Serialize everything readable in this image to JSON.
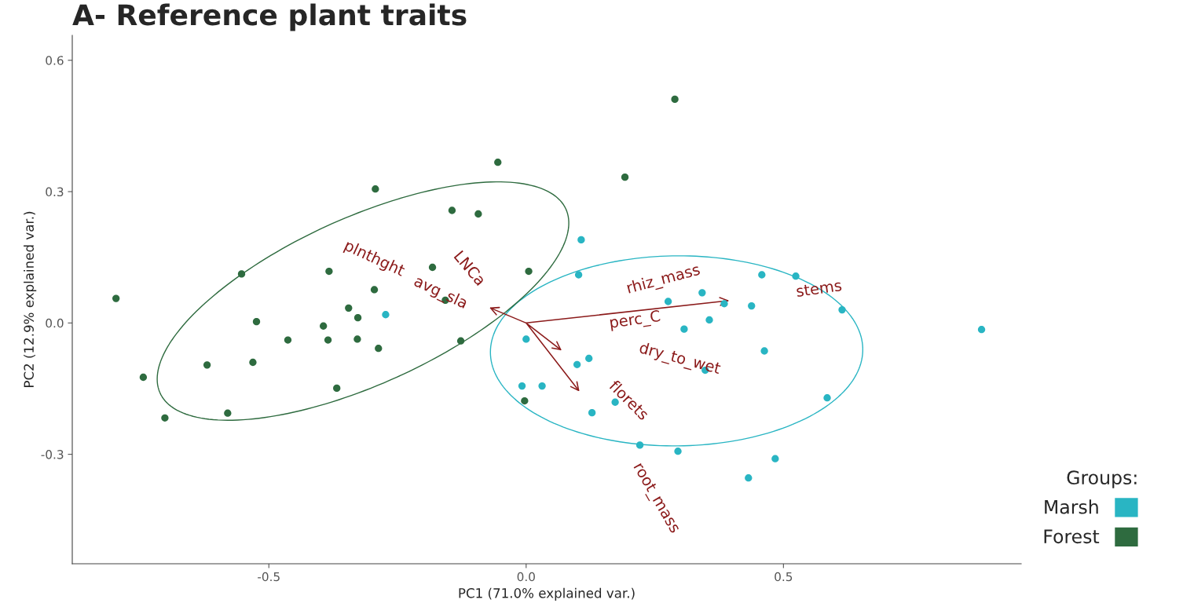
{
  "chart_data": {
    "type": "scatter",
    "title": "A- Reference plant traits",
    "xlabel": "PC1 (71.0% explained var.)",
    "ylabel": "PC2 (12.9% explained var.)",
    "legend_title": "Groups:",
    "legend": "bottom right",
    "grid": false,
    "marker": "circle",
    "xlim": [
      -0.882,
      0.962
    ],
    "ylim": [
      -0.55,
      0.657
    ],
    "xticks": [
      {
        "value": -0.5,
        "label": "-0.5"
      },
      {
        "value": 0.0,
        "label": "0.0"
      },
      {
        "value": 0.5,
        "label": "0.5"
      }
    ],
    "yticks": [
      {
        "value": -0.3,
        "label": "-0.3"
      },
      {
        "value": 0.0,
        "label": "0.0"
      },
      {
        "value": 0.3,
        "label": "0.3"
      },
      {
        "value": 0.6,
        "label": "0.6"
      }
    ],
    "series": [
      {
        "name": "Marsh",
        "color": "#29b5c3",
        "x": [
          -0.273,
          0.107,
          0.102,
          0.0,
          -0.008,
          0.031,
          0.099,
          0.122,
          0.128,
          0.173,
          0.221,
          0.295,
          0.342,
          0.276,
          0.385,
          0.438,
          0.356,
          0.307,
          0.458,
          0.524,
          0.614,
          0.463,
          0.348,
          0.585,
          0.885,
          0.484,
          0.432
        ],
        "values": [
          0.019,
          0.19,
          0.11,
          -0.037,
          -0.144,
          -0.144,
          -0.095,
          -0.081,
          -0.205,
          -0.181,
          -0.279,
          -0.293,
          0.069,
          0.049,
          0.044,
          0.039,
          0.007,
          -0.014,
          0.11,
          0.107,
          0.03,
          -0.064,
          -0.108,
          -0.171,
          -0.015,
          -0.31,
          -0.354
        ]
      },
      {
        "name": "Forest",
        "color": "#2e6b3f",
        "x": [
          -0.797,
          -0.744,
          -0.702,
          -0.62,
          -0.58,
          -0.553,
          -0.531,
          -0.524,
          -0.463,
          -0.394,
          -0.383,
          -0.385,
          -0.368,
          -0.345,
          -0.327,
          -0.328,
          -0.293,
          -0.295,
          -0.287,
          -0.182,
          -0.144,
          -0.157,
          -0.093,
          -0.127,
          -0.055,
          0.005,
          -0.003,
          0.192,
          0.289
        ],
        "values": [
          0.056,
          -0.124,
          -0.217,
          -0.096,
          -0.206,
          0.112,
          -0.09,
          0.003,
          -0.039,
          -0.007,
          0.118,
          -0.039,
          -0.149,
          0.034,
          0.012,
          -0.037,
          0.306,
          0.076,
          -0.058,
          0.127,
          0.257,
          0.052,
          0.249,
          -0.041,
          0.367,
          0.118,
          -0.178,
          0.333,
          0.511
        ]
      },
      {
        "type": "line",
        "marker": "none",
        "color": "#8b1a1a",
        "x": [
          0.0,
          -0.069,
          null,
          0.0,
          0.392,
          null,
          0.0,
          0.067,
          null,
          0.0,
          0.102
        ],
        "values": [
          0.0,
          0.034,
          null,
          0.0,
          0.051,
          null,
          0.0,
          -0.061,
          null,
          0.0,
          -0.154
        ]
      }
    ],
    "annotations": [
      "plnthght",
      "avg_sla",
      "LNCa",
      "rhiz_mass",
      "stems",
      "perc_C",
      "dry_to_wet",
      "florets",
      "root_mass"
    ]
  }
}
